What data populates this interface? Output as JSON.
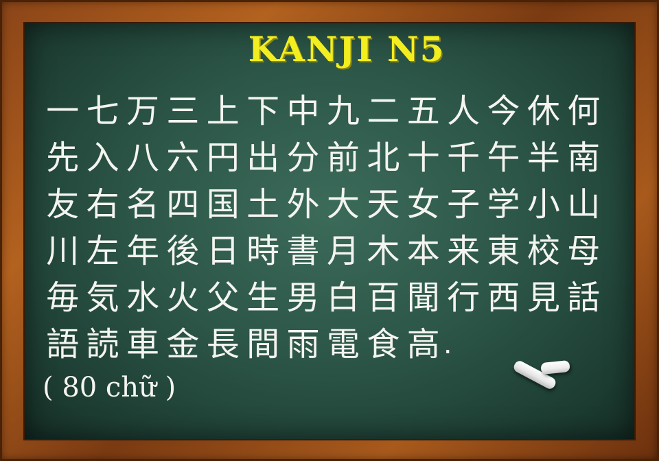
{
  "title": "KANJI N5",
  "rows": [
    [
      "一",
      "七",
      "万",
      "三",
      "上",
      "下",
      "中",
      "九",
      "二",
      "五",
      "人",
      "今",
      "休",
      "何"
    ],
    [
      "先",
      "入",
      "八",
      "六",
      "円",
      "出",
      "分",
      "前",
      "北",
      "十",
      "千",
      "午",
      "半",
      "南"
    ],
    [
      "友",
      "右",
      "名",
      "四",
      "国",
      "土",
      "外",
      "大",
      "天",
      "女",
      "子",
      "学",
      "小",
      "山"
    ],
    [
      "川",
      "左",
      "年",
      "後",
      "日",
      "時",
      "書",
      "月",
      "木",
      "本",
      "来",
      "東",
      "校",
      "母"
    ],
    [
      "毎",
      "気",
      "水",
      "火",
      "父",
      "生",
      "男",
      "白",
      "百",
      "聞",
      "行",
      "西",
      "見",
      "話"
    ],
    [
      "語",
      "読",
      "車",
      "金",
      "長",
      "間",
      "雨",
      "電",
      "食",
      "高"
    ]
  ],
  "period": ".",
  "count_label": "( 80 chữ )",
  "colors": {
    "board": "#2c5648",
    "title": "#f2ee1f",
    "chalk_text": "#f4f4f0",
    "frame": "#a85a1c"
  }
}
